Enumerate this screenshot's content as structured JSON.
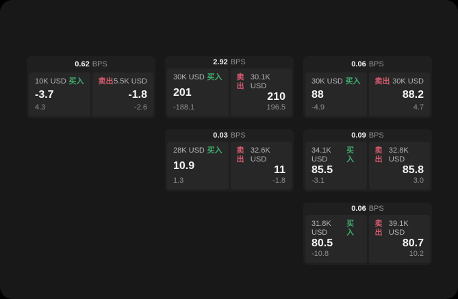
{
  "labels": {
    "bps_unit": "BPS",
    "buy": "买入",
    "sell": "卖出"
  },
  "colors": {
    "page_bg": "#000000",
    "window_bg": "#181818",
    "card_bg": "#1f1f1f",
    "panel_bg": "#272727",
    "buy_green": "#3fae6e",
    "sell_red": "#d45a6e",
    "text_primary": "#f5f5f5",
    "text_secondary": "#8f8f8f",
    "text_label": "#b5b5b5"
  },
  "cards": [
    {
      "bps": "0.62",
      "buy": {
        "size": "10K USD",
        "value": "-3.7",
        "sub": "4.3"
      },
      "sell": {
        "size": "5.5K USD",
        "value": "-1.8",
        "sub": "-2.6"
      }
    },
    {
      "bps": "2.92",
      "buy": {
        "size": "30K USD",
        "value": "201",
        "sub": "-188.1"
      },
      "sell": {
        "size": "30.1K USD",
        "value": "210",
        "sub": "196.5"
      }
    },
    {
      "bps": "0.06",
      "buy": {
        "size": "30K USD",
        "value": "88",
        "sub": "-4.9"
      },
      "sell": {
        "size": "30K USD",
        "value": "88.2",
        "sub": "4.7"
      }
    },
    {
      "bps": "0.03",
      "buy": {
        "size": "28K USD",
        "value": "10.9",
        "sub": "1.3"
      },
      "sell": {
        "size": "32.6K USD",
        "value": "11",
        "sub": "-1.8"
      }
    },
    {
      "bps": "0.09",
      "buy": {
        "size": "34.1K USD",
        "value": "85.5",
        "sub": "-3.1"
      },
      "sell": {
        "size": "32.8K USD",
        "value": "85.8",
        "sub": "3.0"
      }
    },
    {
      "bps": "0.06",
      "buy": {
        "size": "31.8K USD",
        "value": "80.5",
        "sub": "-10.8"
      },
      "sell": {
        "size": "39.1K USD",
        "value": "80.7",
        "sub": "10.2"
      }
    }
  ]
}
